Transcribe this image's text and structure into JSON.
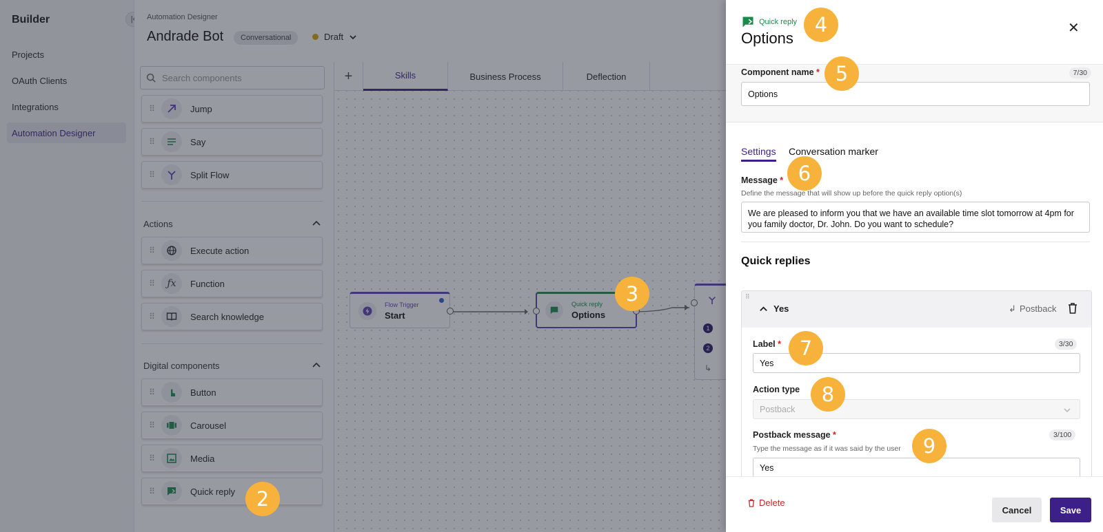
{
  "nav": {
    "title": "Builder",
    "items": [
      {
        "label": "Projects"
      },
      {
        "label": "OAuth Clients"
      },
      {
        "label": "Integrations"
      },
      {
        "label": "Automation Designer"
      }
    ]
  },
  "header": {
    "breadcrumb": "Automation Designer",
    "bot_name": "Andrade Bot",
    "type_chip": "Conversational",
    "status": "Draft"
  },
  "components": {
    "search_placeholder": "Search components",
    "items_top": [
      {
        "label": "Jump",
        "icon": "jump-arrow-icon"
      },
      {
        "label": "Say",
        "icon": "lines-icon"
      },
      {
        "label": "Split Flow",
        "icon": "split-icon"
      }
    ],
    "actions": {
      "title": "Actions",
      "items": [
        {
          "label": "Execute action",
          "icon": "globe-icon"
        },
        {
          "label": "Function",
          "icon": "function-icon"
        },
        {
          "label": "Search knowledge",
          "icon": "book-icon"
        }
      ]
    },
    "digital": {
      "title": "Digital components",
      "items": [
        {
          "label": "Button",
          "icon": "tap-icon"
        },
        {
          "label": "Carousel",
          "icon": "carousel-icon"
        },
        {
          "label": "Media",
          "icon": "image-icon"
        },
        {
          "label": "Quick reply",
          "icon": "chat-reply-icon"
        }
      ]
    }
  },
  "canvas": {
    "tabs": [
      {
        "label": "Skills"
      },
      {
        "label": "Business Process"
      },
      {
        "label": "Deflection"
      }
    ],
    "nodes": [
      {
        "subtitle": "Flow Trigger",
        "name": "Start"
      },
      {
        "subtitle": "Quick reply",
        "name": "Options"
      }
    ],
    "partial_node_items": [
      "1",
      "2"
    ]
  },
  "badges": [
    "2",
    "3",
    "4",
    "5",
    "6",
    "7",
    "8",
    "9"
  ],
  "panel": {
    "type_label": "Quick reply",
    "title": "Options",
    "component_name": {
      "label": "Component name",
      "counter": "7/30",
      "value": "Options"
    },
    "tabs": [
      {
        "label": "Settings"
      },
      {
        "label": "Conversation marker"
      }
    ],
    "message": {
      "label": "Message",
      "help": "Define the message that will show up before the quick reply option(s)",
      "value": "We are pleased to inform you that we have an available time slot tomorrow at 4pm for you family doctor, Dr. John. Do you want to schedule?"
    },
    "quick_replies": {
      "title": "Quick replies",
      "item": {
        "title": "Yes",
        "type_badge": "Postback",
        "label_field": {
          "label": "Label",
          "counter": "3/30",
          "value": "Yes"
        },
        "action_type": {
          "label": "Action type",
          "value": "Postback"
        },
        "postback": {
          "label": "Postback message",
          "counter": "3/100",
          "help": "Type the message as if it was said by the user",
          "value": "Yes"
        }
      }
    },
    "footer": {
      "delete": "Delete",
      "cancel": "Cancel",
      "save": "Save"
    }
  },
  "colors": {
    "accent": "#3d1f8a",
    "badge": "#f7b23b",
    "quick_reply_green": "#1a8a4a",
    "danger": "#c62828"
  }
}
